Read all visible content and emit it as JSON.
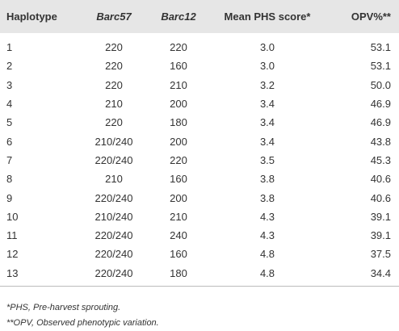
{
  "table": {
    "header": [
      "Haplotype",
      "Barc57",
      "Barc12",
      "Mean PHS score*",
      "OPV%**"
    ],
    "rows": [
      [
        "1",
        "220",
        "220",
        "3.0",
        "53.1"
      ],
      [
        "2",
        "220",
        "160",
        "3.0",
        "53.1"
      ],
      [
        "3",
        "220",
        "210",
        "3.2",
        "50.0"
      ],
      [
        "4",
        "210",
        "200",
        "3.4",
        "46.9"
      ],
      [
        "5",
        "220",
        "180",
        "3.4",
        "46.9"
      ],
      [
        "6",
        "210/240",
        "200",
        "3.4",
        "43.8"
      ],
      [
        "7",
        "220/240",
        "220",
        "3.5",
        "45.3"
      ],
      [
        "8",
        "210",
        "160",
        "3.8",
        "40.6"
      ],
      [
        "9",
        "220/240",
        "200",
        "3.8",
        "40.6"
      ],
      [
        "10",
        "210/240",
        "210",
        "4.3",
        "39.1"
      ],
      [
        "11",
        "220/240",
        "240",
        "4.3",
        "39.1"
      ],
      [
        "12",
        "220/240",
        "160",
        "4.8",
        "37.5"
      ],
      [
        "13",
        "220/240",
        "180",
        "4.8",
        "34.4"
      ]
    ]
  },
  "footnotes": [
    "*PHS, Pre-harvest sprouting.",
    "**OPV, Observed phenotypic variation."
  ]
}
